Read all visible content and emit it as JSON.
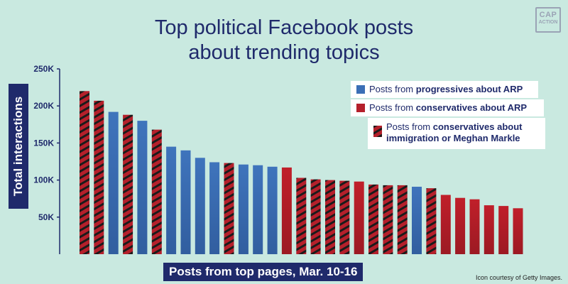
{
  "title_line1": "Top political Facebook posts",
  "title_line2": "about trending topics",
  "logo_line1": "CAP",
  "logo_line2": "ACTION",
  "credit": "Icon courtesy of Getty Images.",
  "colors": {
    "background": "#c9e9e0",
    "navy": "#1f2a6b",
    "progressive": "#3b6fb6",
    "conservative": "#b5202b",
    "hatch": "#1b1b1b"
  },
  "chart_data": {
    "type": "bar",
    "xlabel": "Posts from top pages, Mar. 10-16",
    "ylabel": "Total interactions",
    "ylim": [
      0,
      250000
    ],
    "yticks": [
      {
        "value": 50000,
        "label": "50K"
      },
      {
        "value": 100000,
        "label": "100K"
      },
      {
        "value": 150000,
        "label": "150K"
      },
      {
        "value": 200000,
        "label": "200K"
      },
      {
        "value": 250000,
        "label": "250K"
      }
    ],
    "legend": [
      {
        "key": "prog",
        "pre": "Posts from ",
        "bold": "progressives about ARP",
        "post": ""
      },
      {
        "key": "cons",
        "pre": "Posts from ",
        "bold": "conservatives about ARP",
        "post": ""
      },
      {
        "key": "hatch",
        "pre": "Posts from ",
        "bold": "conservatives about",
        "bold2": "immigration or Meghan Markle"
      }
    ],
    "bars": [
      {
        "value": 220000,
        "cat": "hatch"
      },
      {
        "value": 207000,
        "cat": "hatch"
      },
      {
        "value": 192000,
        "cat": "prog"
      },
      {
        "value": 188000,
        "cat": "hatch"
      },
      {
        "value": 180000,
        "cat": "prog"
      },
      {
        "value": 168000,
        "cat": "hatch"
      },
      {
        "value": 145000,
        "cat": "prog"
      },
      {
        "value": 140000,
        "cat": "prog"
      },
      {
        "value": 130000,
        "cat": "prog"
      },
      {
        "value": 124000,
        "cat": "prog"
      },
      {
        "value": 123000,
        "cat": "hatch"
      },
      {
        "value": 121000,
        "cat": "prog"
      },
      {
        "value": 120000,
        "cat": "prog"
      },
      {
        "value": 118000,
        "cat": "prog"
      },
      {
        "value": 117000,
        "cat": "cons"
      },
      {
        "value": 103000,
        "cat": "hatch"
      },
      {
        "value": 101000,
        "cat": "hatch"
      },
      {
        "value": 100000,
        "cat": "hatch"
      },
      {
        "value": 99000,
        "cat": "hatch"
      },
      {
        "value": 98000,
        "cat": "cons"
      },
      {
        "value": 94000,
        "cat": "hatch"
      },
      {
        "value": 93000,
        "cat": "hatch"
      },
      {
        "value": 93000,
        "cat": "hatch"
      },
      {
        "value": 91000,
        "cat": "prog"
      },
      {
        "value": 89000,
        "cat": "hatch"
      },
      {
        "value": 80000,
        "cat": "cons"
      },
      {
        "value": 76000,
        "cat": "cons"
      },
      {
        "value": 74000,
        "cat": "cons"
      },
      {
        "value": 66000,
        "cat": "cons"
      },
      {
        "value": 65000,
        "cat": "cons"
      },
      {
        "value": 62000,
        "cat": "cons"
      }
    ]
  }
}
